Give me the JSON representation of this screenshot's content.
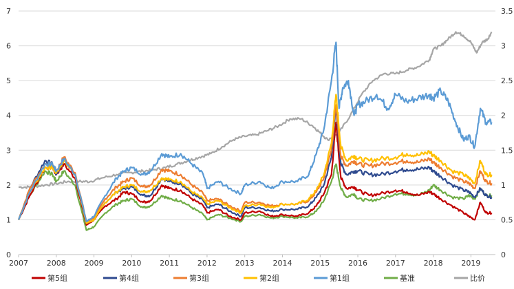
{
  "chart_data": {
    "type": "line",
    "title": "",
    "xlabel": "",
    "ylabel": "",
    "y2label": "",
    "x_ticks": [
      "2007",
      "2008",
      "2009",
      "2010",
      "2011",
      "2012",
      "2013",
      "2014",
      "2015",
      "2016",
      "2017",
      "2018",
      "2019"
    ],
    "xlim": [
      2007.0,
      2019.65
    ],
    "ylim": [
      0,
      7
    ],
    "y_ticks": [
      0,
      1,
      2,
      3,
      4,
      5,
      6,
      7
    ],
    "y2lim": [
      0,
      3.5
    ],
    "y2_ticks": [
      "0",
      "0.5",
      "1",
      "1.5",
      "2",
      "2.5",
      "3",
      "3.5"
    ],
    "grid": "horizontal",
    "legend_position": "bottom",
    "series": [
      {
        "name": "第5组",
        "color": "#c00000",
        "axis": "left",
        "x": [
          2007.0,
          2007.3,
          2007.7,
          2007.9,
          2008.0,
          2008.2,
          2008.5,
          2008.8,
          2009.0,
          2009.3,
          2009.6,
          2009.8,
          2010.0,
          2010.3,
          2010.5,
          2010.8,
          2011.0,
          2011.3,
          2011.6,
          2011.9,
          2012.0,
          2012.3,
          2012.6,
          2012.9,
          2013.0,
          2013.4,
          2013.7,
          2014.0,
          2014.4,
          2014.7,
          2014.9,
          2015.1,
          2015.3,
          2015.42,
          2015.55,
          2015.7,
          2015.9,
          2016.0,
          2016.3,
          2016.6,
          2017.0,
          2017.3,
          2017.6,
          2017.9,
          2018.0,
          2018.2,
          2018.5,
          2018.8,
          2018.95,
          2019.1,
          2019.25,
          2019.4,
          2019.55
        ],
        "y": [
          1.0,
          1.7,
          2.5,
          2.5,
          2.3,
          2.6,
          2.2,
          0.85,
          1.0,
          1.4,
          1.6,
          1.8,
          1.75,
          1.5,
          1.55,
          2.0,
          1.9,
          1.85,
          1.6,
          1.4,
          1.2,
          1.3,
          1.1,
          1.0,
          1.2,
          1.25,
          1.1,
          1.15,
          1.1,
          1.2,
          1.4,
          1.75,
          2.3,
          3.8,
          2.2,
          1.9,
          1.95,
          1.85,
          1.7,
          1.75,
          1.85,
          1.8,
          1.7,
          1.8,
          1.75,
          1.6,
          1.4,
          1.2,
          1.1,
          1.0,
          1.5,
          1.2,
          1.2
        ]
      },
      {
        "name": "第4组",
        "color": "#2e4a8f",
        "axis": "left",
        "x": [
          2007.0,
          2007.3,
          2007.7,
          2007.9,
          2008.0,
          2008.2,
          2008.5,
          2008.8,
          2009.0,
          2009.3,
          2009.6,
          2009.8,
          2010.0,
          2010.3,
          2010.5,
          2010.8,
          2011.0,
          2011.3,
          2011.6,
          2011.9,
          2012.0,
          2012.3,
          2012.6,
          2012.9,
          2013.0,
          2013.4,
          2013.7,
          2014.0,
          2014.4,
          2014.7,
          2014.9,
          2015.1,
          2015.3,
          2015.42,
          2015.55,
          2015.7,
          2015.9,
          2016.0,
          2016.3,
          2016.6,
          2017.0,
          2017.3,
          2017.6,
          2017.9,
          2018.0,
          2018.2,
          2018.5,
          2018.8,
          2018.95,
          2019.1,
          2019.25,
          2019.4,
          2019.55
        ],
        "y": [
          1.0,
          1.9,
          2.7,
          2.6,
          2.3,
          2.7,
          2.3,
          0.9,
          1.0,
          1.5,
          1.8,
          1.9,
          1.95,
          1.7,
          1.7,
          2.2,
          2.1,
          2.05,
          1.75,
          1.55,
          1.35,
          1.45,
          1.25,
          1.1,
          1.35,
          1.35,
          1.25,
          1.3,
          1.3,
          1.4,
          1.65,
          2.0,
          2.8,
          4.2,
          2.6,
          2.3,
          2.4,
          2.4,
          2.3,
          2.3,
          2.4,
          2.45,
          2.45,
          2.5,
          2.4,
          2.25,
          2.0,
          1.85,
          1.8,
          1.65,
          1.9,
          1.7,
          1.65
        ]
      },
      {
        "name": "第3组",
        "color": "#ed7d31",
        "axis": "left",
        "x": [
          2007.0,
          2007.3,
          2007.7,
          2007.9,
          2008.0,
          2008.2,
          2008.5,
          2008.8,
          2009.0,
          2009.3,
          2009.6,
          2009.8,
          2010.0,
          2010.3,
          2010.5,
          2010.8,
          2011.0,
          2011.3,
          2011.6,
          2011.9,
          2012.0,
          2012.3,
          2012.6,
          2012.9,
          2013.0,
          2013.4,
          2013.7,
          2014.0,
          2014.4,
          2014.7,
          2014.9,
          2015.1,
          2015.3,
          2015.42,
          2015.55,
          2015.7,
          2015.9,
          2016.0,
          2016.3,
          2016.6,
          2017.0,
          2017.3,
          2017.6,
          2017.9,
          2018.0,
          2018.2,
          2018.5,
          2018.8,
          2018.95,
          2019.1,
          2019.25,
          2019.4,
          2019.55
        ],
        "y": [
          1.0,
          1.9,
          2.6,
          2.6,
          2.4,
          2.8,
          2.35,
          0.95,
          1.05,
          1.6,
          1.95,
          2.1,
          2.2,
          1.95,
          2.0,
          2.45,
          2.4,
          2.3,
          2.0,
          1.75,
          1.55,
          1.6,
          1.4,
          1.25,
          1.5,
          1.5,
          1.4,
          1.45,
          1.45,
          1.55,
          1.8,
          2.2,
          3.0,
          4.3,
          2.8,
          2.55,
          2.7,
          2.6,
          2.55,
          2.6,
          2.65,
          2.7,
          2.65,
          2.75,
          2.65,
          2.5,
          2.25,
          2.1,
          2.05,
          1.9,
          2.4,
          2.1,
          2.05
        ]
      },
      {
        "name": "第2组",
        "color": "#ffc000",
        "axis": "left",
        "x": [
          2007.0,
          2007.3,
          2007.7,
          2007.9,
          2008.0,
          2008.2,
          2008.5,
          2008.8,
          2009.0,
          2009.3,
          2009.6,
          2009.8,
          2010.0,
          2010.3,
          2010.5,
          2010.8,
          2011.0,
          2011.3,
          2011.6,
          2011.9,
          2012.0,
          2012.3,
          2012.6,
          2012.9,
          2013.0,
          2013.4,
          2013.7,
          2014.0,
          2014.4,
          2014.7,
          2014.9,
          2015.1,
          2015.3,
          2015.42,
          2015.55,
          2015.7,
          2015.9,
          2016.0,
          2016.3,
          2016.6,
          2017.0,
          2017.3,
          2017.6,
          2017.9,
          2018.0,
          2018.2,
          2018.5,
          2018.8,
          2018.95,
          2019.1,
          2019.25,
          2019.4,
          2019.55
        ],
        "y": [
          1.0,
          1.8,
          2.5,
          2.5,
          2.35,
          2.7,
          2.3,
          0.9,
          1.0,
          1.5,
          1.8,
          1.95,
          2.0,
          1.8,
          1.85,
          2.2,
          2.15,
          2.1,
          1.8,
          1.6,
          1.45,
          1.55,
          1.35,
          1.2,
          1.4,
          1.45,
          1.35,
          1.45,
          1.45,
          1.6,
          1.85,
          2.3,
          3.2,
          4.6,
          3.1,
          2.7,
          2.85,
          2.75,
          2.7,
          2.75,
          2.8,
          2.9,
          2.85,
          2.95,
          2.85,
          2.7,
          2.4,
          2.3,
          2.2,
          2.05,
          2.7,
          2.3,
          2.3
        ]
      },
      {
        "name": "第1组",
        "color": "#5b9bd5",
        "axis": "left",
        "x": [
          2007.0,
          2007.3,
          2007.7,
          2007.9,
          2008.0,
          2008.2,
          2008.5,
          2008.8,
          2009.0,
          2009.3,
          2009.6,
          2009.8,
          2010.0,
          2010.3,
          2010.5,
          2010.8,
          2011.0,
          2011.3,
          2011.6,
          2011.9,
          2012.0,
          2012.3,
          2012.6,
          2012.9,
          2013.0,
          2013.4,
          2013.7,
          2014.0,
          2014.4,
          2014.7,
          2014.9,
          2015.1,
          2015.3,
          2015.42,
          2015.5,
          2015.6,
          2015.75,
          2015.9,
          2016.0,
          2016.2,
          2016.5,
          2016.8,
          2017.0,
          2017.3,
          2017.6,
          2017.9,
          2018.0,
          2018.2,
          2018.4,
          2018.6,
          2018.8,
          2018.95,
          2019.1,
          2019.25,
          2019.4,
          2019.55
        ],
        "y": [
          1.0,
          1.8,
          2.6,
          2.6,
          2.4,
          2.75,
          2.3,
          0.95,
          1.1,
          1.7,
          2.2,
          2.4,
          2.5,
          2.3,
          2.4,
          2.9,
          2.8,
          2.9,
          2.6,
          2.3,
          1.9,
          2.1,
          1.9,
          1.75,
          2.0,
          2.1,
          1.9,
          2.1,
          2.1,
          2.3,
          2.9,
          3.6,
          5.0,
          6.1,
          4.2,
          4.8,
          5.0,
          4.0,
          4.3,
          4.4,
          4.6,
          4.2,
          4.6,
          4.4,
          4.5,
          4.6,
          4.5,
          4.7,
          4.4,
          3.8,
          3.3,
          3.4,
          3.1,
          4.2,
          3.8,
          3.8
        ]
      },
      {
        "name": "基准",
        "color": "#70ad47",
        "axis": "left",
        "x": [
          2007.0,
          2007.3,
          2007.7,
          2007.9,
          2008.0,
          2008.2,
          2008.5,
          2008.8,
          2009.0,
          2009.3,
          2009.6,
          2009.8,
          2010.0,
          2010.3,
          2010.5,
          2010.8,
          2011.0,
          2011.3,
          2011.6,
          2011.9,
          2012.0,
          2012.3,
          2012.6,
          2012.9,
          2013.0,
          2013.4,
          2013.7,
          2014.0,
          2014.4,
          2014.7,
          2014.9,
          2015.1,
          2015.3,
          2015.42,
          2015.55,
          2015.7,
          2015.9,
          2016.0,
          2016.3,
          2016.6,
          2017.0,
          2017.3,
          2017.6,
          2017.9,
          2018.0,
          2018.2,
          2018.5,
          2018.8,
          2018.95,
          2019.1,
          2019.25,
          2019.4,
          2019.55
        ],
        "y": [
          1.0,
          1.7,
          2.4,
          2.3,
          2.1,
          2.4,
          2.0,
          0.7,
          0.8,
          1.2,
          1.45,
          1.55,
          1.6,
          1.35,
          1.4,
          1.7,
          1.6,
          1.55,
          1.35,
          1.15,
          1.0,
          1.15,
          1.05,
          0.95,
          1.1,
          1.15,
          1.05,
          1.1,
          1.05,
          1.1,
          1.25,
          1.55,
          2.1,
          2.6,
          1.9,
          1.65,
          1.75,
          1.6,
          1.55,
          1.6,
          1.75,
          1.75,
          1.7,
          1.85,
          2.0,
          1.85,
          1.65,
          1.6,
          1.7,
          1.6,
          1.9,
          1.7,
          1.7
        ]
      },
      {
        "name": "比价",
        "color": "#a6a6a6",
        "axis": "right",
        "x": [
          2007.0,
          2007.3,
          2007.7,
          2008.0,
          2008.3,
          2008.6,
          2008.9,
          2009.2,
          2009.6,
          2010.0,
          2010.3,
          2010.6,
          2010.9,
          2011.2,
          2011.5,
          2011.8,
          2012.1,
          2012.4,
          2012.7,
          2013.0,
          2013.3,
          2013.6,
          2013.9,
          2014.2,
          2014.5,
          2014.8,
          2015.0,
          2015.2,
          2015.5,
          2015.8,
          2016.1,
          2016.4,
          2016.7,
          2017.0,
          2017.3,
          2017.6,
          2017.9,
          2018.0,
          2018.2,
          2018.4,
          2018.6,
          2018.8,
          2019.0,
          2019.15,
          2019.3,
          2019.45,
          2019.55
        ],
        "y": [
          0.97,
          0.97,
          1.0,
          1.02,
          1.05,
          1.05,
          1.05,
          1.1,
          1.15,
          1.18,
          1.2,
          1.22,
          1.25,
          1.3,
          1.35,
          1.4,
          1.45,
          1.55,
          1.65,
          1.7,
          1.72,
          1.78,
          1.85,
          1.95,
          1.95,
          1.85,
          1.75,
          1.65,
          1.75,
          2.0,
          2.3,
          2.5,
          2.6,
          2.6,
          2.65,
          2.7,
          2.8,
          2.95,
          3.0,
          3.1,
          3.2,
          3.15,
          3.05,
          2.9,
          3.05,
          3.1,
          3.2
        ]
      }
    ]
  }
}
